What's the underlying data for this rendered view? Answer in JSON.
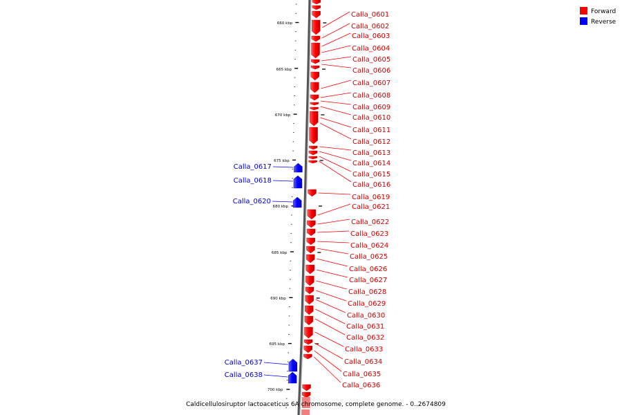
{
  "legend": {
    "items": [
      {
        "label": "Forward",
        "color": "#ff0000"
      },
      {
        "label": "Reverse",
        "color": "#0000ff"
      }
    ]
  },
  "caption": "Caldicellulosiruptor lactoaceticus 6A chromosome, complete genome. - 0..2674809",
  "axis": {
    "unit": "kbp",
    "tick_labels": [
      "660 kbp",
      "665 kbp",
      "670 kbp",
      "675 kbp",
      "680 kbp",
      "685 kbp",
      "690 kbp",
      "695 kbp",
      "700 kbp"
    ]
  },
  "colors": {
    "forward": "#ff0000",
    "reverse": "#0000ff",
    "backbone": "#888888"
  },
  "forward_genes": [
    "Calla_0601",
    "Calla_0602",
    "Calla_0603",
    "Calla_0604",
    "Calla_0605",
    "Calla_0606",
    "Calla_0607",
    "Calla_0608",
    "Calla_0609",
    "Calla_0610",
    "Calla_0611",
    "Calla_0612",
    "Calla_0613",
    "Calla_0614",
    "Calla_0615",
    "Calla_0616",
    "Calla_0619",
    "Calla_0621",
    "Calla_0622",
    "Calla_0623",
    "Calla_0624",
    "Calla_0625",
    "Calla_0626",
    "Calla_0627",
    "Calla_0628",
    "Calla_0629",
    "Calla_0630",
    "Calla_0631",
    "Calla_0632",
    "Calla_0633",
    "Calla_0634",
    "Calla_0635",
    "Calla_0636"
  ],
  "reverse_genes": [
    "Calla_0617",
    "Calla_0618",
    "Calla_0620",
    "Calla_0637",
    "Calla_0638"
  ]
}
